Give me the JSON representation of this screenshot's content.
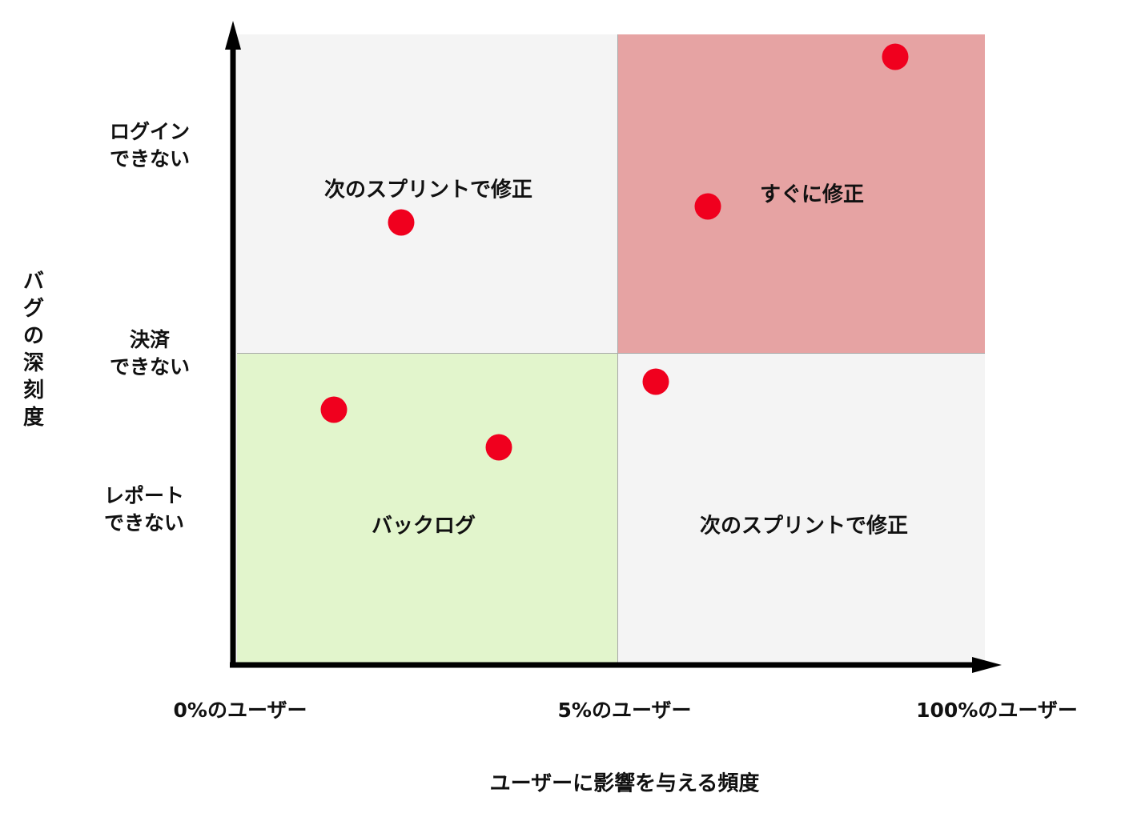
{
  "quadrants": [
    {
      "id": "top-left",
      "label": "次のスプリントで修正",
      "color": "#f4f4f4"
    },
    {
      "id": "top-right",
      "label": "すぐに修正",
      "color": "#e6a3a3"
    },
    {
      "id": "bottom-left",
      "label": "バックログ",
      "color": "#e2f5cc"
    },
    {
      "id": "bottom-right",
      "label": "次のスプリントで修正",
      "color": "#f4f4f4"
    }
  ],
  "y_axis": {
    "title": "バグの深刻度",
    "levels": [
      "ログイン\nできない",
      "決済\nできない",
      "レポート\nできない"
    ]
  },
  "x_axis": {
    "title": "ユーザーに影響を与える頻度",
    "levels": [
      "0%のユーザー",
      "5%のユーザー",
      "100%のユーザー"
    ]
  },
  "point_color": "#f0001e",
  "points": [
    {
      "x": 0.88,
      "y": 0.93
    },
    {
      "x": 0.63,
      "y": 0.46
    },
    {
      "x": 0.22,
      "y": 0.41
    },
    {
      "x": 0.56,
      "y": -0.09
    },
    {
      "x": 0.13,
      "y": -0.18
    },
    {
      "x": 0.35,
      "y": -0.3
    }
  ]
}
